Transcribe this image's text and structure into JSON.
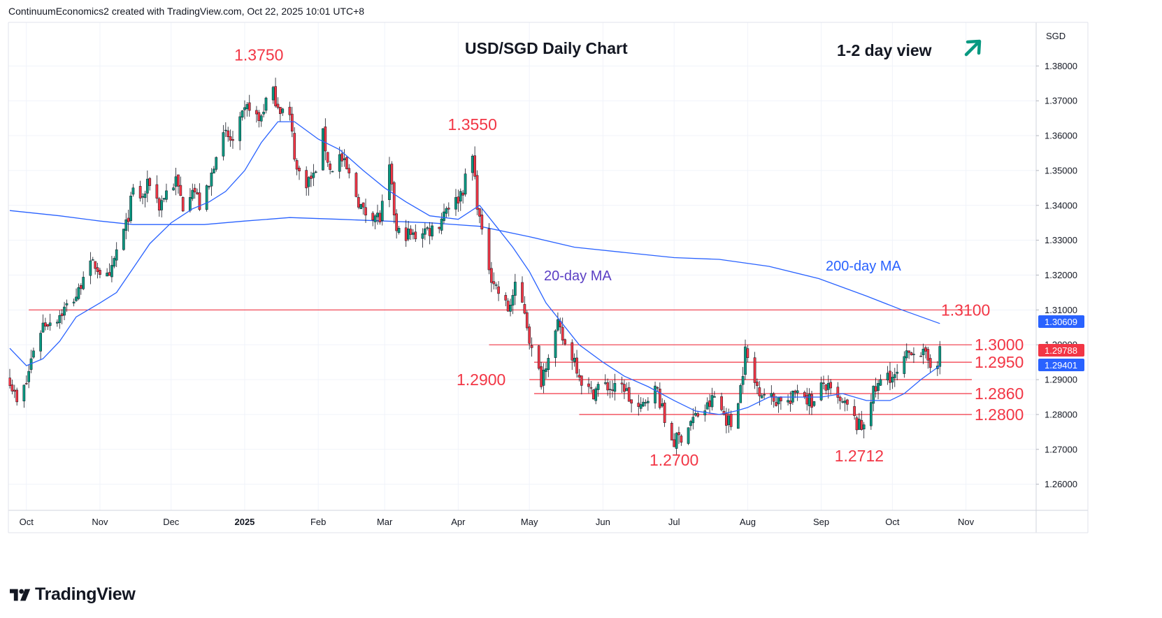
{
  "header": {
    "attribution": "ContinuumEconomics2 created with TradingView.com, Oct 22, 2025 10:01 UTC+8"
  },
  "brand": {
    "name": "TradingView"
  },
  "chart_data": {
    "type": "candlestick",
    "title": "USD/SGD Daily Chart",
    "subtitle": "1-2 day view",
    "outlook_icon": "arrow-up-right-icon",
    "currency": "SGD",
    "ylim": [
      1.2525,
      1.3925
    ],
    "y_ticks": [
      "1.38000",
      "1.37000",
      "1.36000",
      "1.35000",
      "1.34000",
      "1.33000",
      "1.32000",
      "1.31000",
      "1.30000",
      "1.29000",
      "1.28000",
      "1.27000",
      "1.26000"
    ],
    "x_ticks": [
      {
        "label": "Oct",
        "t": "2024-10-01"
      },
      {
        "label": "Nov",
        "t": "2024-11-01"
      },
      {
        "label": "Dec",
        "t": "2024-12-01"
      },
      {
        "label": "2025",
        "t": "2025-01-01",
        "bold": true
      },
      {
        "label": "Feb",
        "t": "2025-02-01"
      },
      {
        "label": "Mar",
        "t": "2025-03-01"
      },
      {
        "label": "Apr",
        "t": "2025-04-01"
      },
      {
        "label": "May",
        "t": "2025-05-01"
      },
      {
        "label": "Jun",
        "t": "2025-06-01"
      },
      {
        "label": "Jul",
        "t": "2025-07-01"
      },
      {
        "label": "Aug",
        "t": "2025-08-01"
      },
      {
        "label": "Sep",
        "t": "2025-09-01"
      },
      {
        "label": "Oct",
        "t": "2025-10-01"
      },
      {
        "label": "Nov",
        "t": "2025-11-01"
      }
    ],
    "price_path": [
      [
        "2024-09-24",
        1.2905
      ],
      [
        "2024-09-27",
        1.283
      ],
      [
        "2024-10-01",
        1.289
      ],
      [
        "2024-10-04",
        1.299
      ],
      [
        "2024-10-08",
        1.306
      ],
      [
        "2024-10-14",
        1.308
      ],
      [
        "2024-10-18",
        1.311
      ],
      [
        "2024-10-23",
        1.315
      ],
      [
        "2024-10-25",
        1.321
      ],
      [
        "2024-10-30",
        1.323
      ],
      [
        "2024-11-05",
        1.318
      ],
      [
        "2024-11-08",
        1.327
      ],
      [
        "2024-11-12",
        1.334
      ],
      [
        "2024-11-15",
        1.344
      ],
      [
        "2024-11-19",
        1.342
      ],
      [
        "2024-11-22",
        1.347
      ],
      [
        "2024-11-26",
        1.34
      ],
      [
        "2024-11-29",
        1.344
      ],
      [
        "2024-12-03",
        1.347
      ],
      [
        "2024-12-06",
        1.34
      ],
      [
        "2024-12-10",
        1.346
      ],
      [
        "2024-12-13",
        1.34
      ],
      [
        "2024-12-17",
        1.345
      ],
      [
        "2024-12-20",
        1.356
      ],
      [
        "2024-12-24",
        1.36
      ],
      [
        "2024-12-27",
        1.358
      ],
      [
        "2024-12-31",
        1.365
      ],
      [
        "2025-01-03",
        1.369
      ],
      [
        "2025-01-07",
        1.364
      ],
      [
        "2025-01-10",
        1.37
      ],
      [
        "2025-01-13",
        1.372
      ],
      [
        "2025-01-16",
        1.368
      ],
      [
        "2025-01-20",
        1.365
      ],
      [
        "2025-01-23",
        1.35
      ],
      [
        "2025-01-27",
        1.347
      ],
      [
        "2025-01-30",
        1.348
      ],
      [
        "2025-02-03",
        1.36
      ],
      [
        "2025-02-06",
        1.35
      ],
      [
        "2025-02-10",
        1.354
      ],
      [
        "2025-02-13",
        1.35
      ],
      [
        "2025-02-17",
        1.343
      ],
      [
        "2025-02-20",
        1.338
      ],
      [
        "2025-02-24",
        1.338
      ],
      [
        "2025-02-27",
        1.336
      ],
      [
        "2025-03-03",
        1.35
      ],
      [
        "2025-03-06",
        1.332
      ],
      [
        "2025-03-10",
        1.332
      ],
      [
        "2025-03-13",
        1.331
      ],
      [
        "2025-03-17",
        1.333
      ],
      [
        "2025-03-20",
        1.333
      ],
      [
        "2025-03-24",
        1.335
      ],
      [
        "2025-03-27",
        1.34
      ],
      [
        "2025-03-31",
        1.341
      ],
      [
        "2025-04-03",
        1.345
      ],
      [
        "2025-04-07",
        1.354
      ],
      [
        "2025-04-09",
        1.341
      ],
      [
        "2025-04-11",
        1.331
      ],
      [
        "2025-04-15",
        1.32
      ],
      [
        "2025-04-18",
        1.315
      ],
      [
        "2025-04-22",
        1.31
      ],
      [
        "2025-04-25",
        1.316
      ],
      [
        "2025-04-29",
        1.31
      ],
      [
        "2025-05-02",
        1.298
      ],
      [
        "2025-05-06",
        1.29
      ],
      [
        "2025-05-09",
        1.298
      ],
      [
        "2025-05-13",
        1.305
      ],
      [
        "2025-05-16",
        1.3
      ],
      [
        "2025-05-20",
        1.296
      ],
      [
        "2025-05-23",
        1.29
      ],
      [
        "2025-05-27",
        1.286
      ],
      [
        "2025-05-30",
        1.288
      ],
      [
        "2025-06-03",
        1.288
      ],
      [
        "2025-06-06",
        1.287
      ],
      [
        "2025-06-10",
        1.288
      ],
      [
        "2025-06-13",
        1.283
      ],
      [
        "2025-06-17",
        1.281
      ],
      [
        "2025-06-20",
        1.286
      ],
      [
        "2025-06-24",
        1.287
      ],
      [
        "2025-06-27",
        1.278
      ],
      [
        "2025-07-01",
        1.272
      ],
      [
        "2025-07-04",
        1.274
      ],
      [
        "2025-07-08",
        1.278
      ],
      [
        "2025-07-11",
        1.28
      ],
      [
        "2025-07-15",
        1.282
      ],
      [
        "2025-07-18",
        1.285
      ],
      [
        "2025-07-22",
        1.28
      ],
      [
        "2025-07-25",
        1.277
      ],
      [
        "2025-07-29",
        1.288
      ],
      [
        "2025-07-31",
        1.298
      ],
      [
        "2025-08-04",
        1.289
      ],
      [
        "2025-08-08",
        1.286
      ],
      [
        "2025-08-12",
        1.284
      ],
      [
        "2025-08-15",
        1.285
      ],
      [
        "2025-08-19",
        1.283
      ],
      [
        "2025-08-22",
        1.288
      ],
      [
        "2025-08-26",
        1.285
      ],
      [
        "2025-08-29",
        1.283
      ],
      [
        "2025-09-02",
        1.289
      ],
      [
        "2025-09-05",
        1.286
      ],
      [
        "2025-09-09",
        1.283
      ],
      [
        "2025-09-12",
        1.282
      ],
      [
        "2025-09-16",
        1.277
      ],
      [
        "2025-09-18",
        1.276
      ],
      [
        "2025-09-22",
        1.285
      ],
      [
        "2025-09-25",
        1.288
      ],
      [
        "2025-09-29",
        1.292
      ],
      [
        "2025-10-02",
        1.29
      ],
      [
        "2025-10-06",
        1.295
      ],
      [
        "2025-10-09",
        1.299
      ],
      [
        "2025-10-13",
        1.298
      ],
      [
        "2025-10-15",
        1.296
      ],
      [
        "2025-10-17",
        1.295
      ],
      [
        "2025-10-20",
        1.296
      ],
      [
        "2025-10-21",
        1.2979
      ]
    ],
    "ma20_path": [
      [
        "2024-09-24",
        1.299
      ],
      [
        "2024-10-01",
        1.294
      ],
      [
        "2024-10-08",
        1.296
      ],
      [
        "2024-10-15",
        1.301
      ],
      [
        "2024-10-22",
        1.308
      ],
      [
        "2024-11-01",
        1.312
      ],
      [
        "2024-11-08",
        1.315
      ],
      [
        "2024-11-15",
        1.322
      ],
      [
        "2024-11-22",
        1.329
      ],
      [
        "2024-12-01",
        1.335
      ],
      [
        "2024-12-10",
        1.339
      ],
      [
        "2024-12-17",
        1.341
      ],
      [
        "2024-12-24",
        1.344
      ],
      [
        "2025-01-01",
        1.35
      ],
      [
        "2025-01-08",
        1.358
      ],
      [
        "2025-01-15",
        1.364
      ],
      [
        "2025-01-22",
        1.364
      ],
      [
        "2025-02-01",
        1.359
      ],
      [
        "2025-02-10",
        1.356
      ],
      [
        "2025-02-20",
        1.35
      ],
      [
        "2025-03-01",
        1.345
      ],
      [
        "2025-03-10",
        1.341
      ],
      [
        "2025-03-20",
        1.337
      ],
      [
        "2025-04-01",
        1.336
      ],
      [
        "2025-04-10",
        1.34
      ],
      [
        "2025-04-17",
        1.334
      ],
      [
        "2025-04-24",
        1.328
      ],
      [
        "2025-05-01",
        1.321
      ],
      [
        "2025-05-08",
        1.312
      ],
      [
        "2025-05-15",
        1.306
      ],
      [
        "2025-05-22",
        1.3
      ],
      [
        "2025-06-01",
        1.295
      ],
      [
        "2025-06-10",
        1.291
      ],
      [
        "2025-06-20",
        1.288
      ],
      [
        "2025-07-01",
        1.284
      ],
      [
        "2025-07-10",
        1.281
      ],
      [
        "2025-07-20",
        1.28
      ],
      [
        "2025-07-27",
        1.281
      ],
      [
        "2025-08-01",
        1.282
      ],
      [
        "2025-08-10",
        1.285
      ],
      [
        "2025-08-20",
        1.285
      ],
      [
        "2025-09-01",
        1.285
      ],
      [
        "2025-09-10",
        1.286
      ],
      [
        "2025-09-20",
        1.284
      ],
      [
        "2025-09-30",
        1.284
      ],
      [
        "2025-10-06",
        1.286
      ],
      [
        "2025-10-13",
        1.29
      ],
      [
        "2025-10-21",
        1.294
      ]
    ],
    "ma200_path": [
      [
        "2024-09-24",
        1.3385
      ],
      [
        "2024-10-15",
        1.337
      ],
      [
        "2024-11-01",
        1.3355
      ],
      [
        "2024-11-15",
        1.3345
      ],
      [
        "2024-12-01",
        1.3345
      ],
      [
        "2024-12-15",
        1.3345
      ],
      [
        "2025-01-01",
        1.3355
      ],
      [
        "2025-01-20",
        1.3365
      ],
      [
        "2025-02-10",
        1.336
      ],
      [
        "2025-03-01",
        1.3355
      ],
      [
        "2025-03-20",
        1.335
      ],
      [
        "2025-04-10",
        1.334
      ],
      [
        "2025-05-01",
        1.331
      ],
      [
        "2025-05-20",
        1.328
      ],
      [
        "2025-06-10",
        1.3265
      ],
      [
        "2025-07-01",
        1.325
      ],
      [
        "2025-07-20",
        1.3245
      ],
      [
        "2025-08-10",
        1.3225
      ],
      [
        "2025-08-31",
        1.319
      ],
      [
        "2025-09-20",
        1.314
      ],
      [
        "2025-10-05",
        1.31
      ],
      [
        "2025-10-21",
        1.3061
      ]
    ],
    "ma_labels": {
      "ma20": "20-day MA",
      "ma200": "200-day MA"
    },
    "levels": [
      {
        "label": "1.3100",
        "value": 1.31,
        "from": "2024-10-02"
      },
      {
        "label": "1.3000",
        "value": 1.3,
        "from": "2025-04-14"
      },
      {
        "label": "1.2950",
        "value": 1.295,
        "from": "2025-05-03"
      },
      {
        "label": "1.2900",
        "value": 1.29,
        "from": "2025-05-01"
      },
      {
        "label": "1.2860",
        "value": 1.286,
        "from": "2025-05-03"
      },
      {
        "label": "1.2800",
        "value": 1.28,
        "from": "2025-05-22"
      }
    ],
    "annotations": [
      {
        "label": "1.3750",
        "t": "2025-01-07",
        "y": 1.375
      },
      {
        "label": "1.3550",
        "t": "2025-04-07",
        "y": 1.355
      },
      {
        "label": "1.2700",
        "t": "2025-07-01",
        "y": 1.27
      },
      {
        "label": "1.2712",
        "t": "2025-09-17",
        "y": 1.2712
      }
    ],
    "price_tags": [
      {
        "label": "1.30609",
        "value": 1.30609,
        "color": "#2962ff"
      },
      {
        "label": "1.29788",
        "value": 1.29788,
        "color": "#f23645"
      },
      {
        "label": "1.29401",
        "value": 1.29401,
        "color": "#2962ff"
      }
    ],
    "colors": {
      "up": "#089981",
      "down": "#f23645",
      "ma20": "#2962ff",
      "ma200": "#2962ff",
      "level": "#f23645",
      "label": "#f23645",
      "ma_label": "#2962ff",
      "ma20_label": "#5b3fc4",
      "arrow": "#089981"
    }
  }
}
